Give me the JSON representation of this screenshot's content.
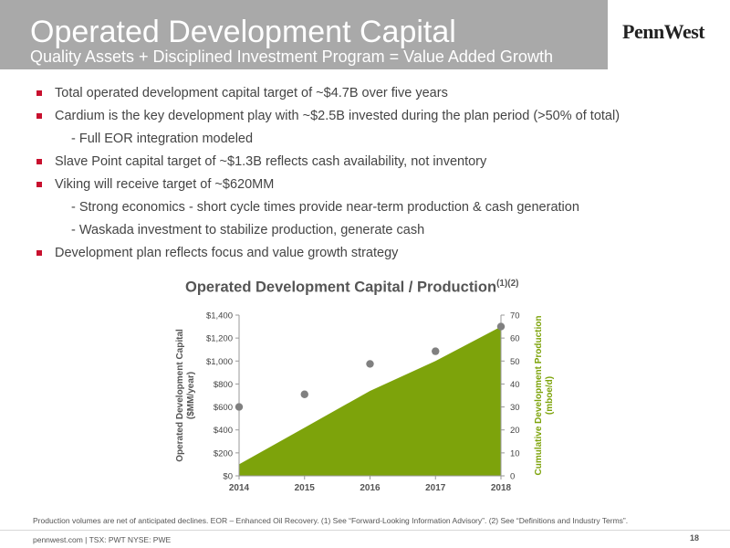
{
  "header": {
    "title": "Operated Development Capital",
    "subtitle": "Quality Assets + Disciplined Investment Program = Value Added Growth",
    "logo": "PennWest"
  },
  "bullets": [
    {
      "level": 1,
      "text": "Total operated development capital target of ~$4.7B over five years"
    },
    {
      "level": 1,
      "text": "Cardium is the key development play with ~$2.5B invested during the plan period (>50% of total)"
    },
    {
      "level": 2,
      "text": "- Full EOR integration modeled"
    },
    {
      "level": 1,
      "text": "Slave Point capital target of ~$1.3B reflects cash availability, not inventory"
    },
    {
      "level": 1,
      "text": "Viking will receive target of ~$620MM"
    },
    {
      "level": 2,
      "text": "- Strong economics - short cycle times provide near-term production & cash generation"
    },
    {
      "level": 2,
      "text": "- Waskada investment to stabilize production, generate cash"
    },
    {
      "level": 1,
      "text": "Development plan reflects focus and value growth strategy"
    }
  ],
  "chart_title": "Operated Development Capital / Production",
  "chart_title_sup": "(1)(2)",
  "chart_data": {
    "type": "area",
    "categories": [
      "2014",
      "2015",
      "2016",
      "2017",
      "2018"
    ],
    "ylabel": "Operated Development Capital ($MM/year)",
    "y2label": "Cumulative Development Production (mboe/d)",
    "ylim": [
      0,
      1400
    ],
    "y2lim": [
      0,
      70
    ],
    "yticks": [
      "$0",
      "$200",
      "$400",
      "$600",
      "$800",
      "$1,000",
      "$1,200",
      "$1,400"
    ],
    "y2ticks": [
      "0",
      "10",
      "20",
      "30",
      "40",
      "50",
      "60",
      "70"
    ],
    "series": [
      {
        "type": "scatter",
        "axis": "left",
        "values": [
          600,
          710,
          975,
          1085,
          1300
        ],
        "color": "#808080"
      },
      {
        "type": "area",
        "axis": "right",
        "values": [
          5,
          21,
          37,
          50,
          65
        ],
        "color": "#7da30b"
      }
    ]
  },
  "footnote": "Production volumes are net of anticipated declines. EOR – Enhanced Oil Recovery. (1) See “Forward-Looking Information Advisory”. (2) See “Definitions and Industry Terms”.",
  "footer": "pennwest.com | TSX: PWT  NYSE: PWE",
  "page_number": "18",
  "colors": {
    "accent": "#c8102e",
    "area": "#7da30b",
    "header": "#a9a9a9",
    "points": "#808080"
  }
}
